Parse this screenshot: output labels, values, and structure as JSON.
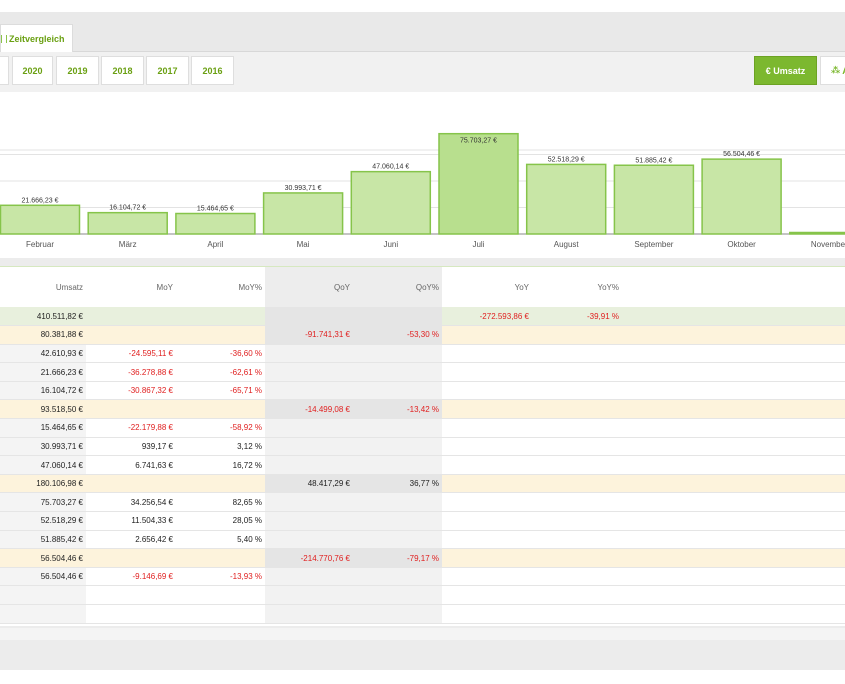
{
  "tabs": {
    "active_label": "Zeitvergleich"
  },
  "years": [
    "2020",
    "2019",
    "2018",
    "2017",
    "2016"
  ],
  "buttons": {
    "umsatz": "€ Umsatz",
    "second": "A"
  },
  "chart_data": {
    "type": "bar",
    "categories": [
      "Februar",
      "März",
      "April",
      "Mai",
      "Juni",
      "Juli",
      "August",
      "September",
      "Oktober",
      "November"
    ],
    "values": [
      21666.23,
      16104.72,
      15464.65,
      30993.71,
      47060.14,
      75703.27,
      52518.29,
      51885.42,
      56504.46,
      0
    ],
    "labels": [
      "21.666,23 €",
      "16.104,72 €",
      "15.464,65 €",
      "30.993,71 €",
      "47.060,14 €",
      "75.703,27 €",
      "52.518,29 €",
      "51.885,42 €",
      "56.504,46 €",
      ""
    ],
    "ylim": [
      0,
      80000
    ],
    "grid": true,
    "highlight_index": 5,
    "colors": {
      "bar": "#c8e6a6",
      "bar_highlight": "#b8df8e",
      "border": "#86c44a"
    }
  },
  "table": {
    "headers": [
      "Umsatz",
      "MoY",
      "MoY%",
      "QoY",
      "QoY%",
      "YoY",
      "YoY%"
    ],
    "rows": [
      {
        "type": "year",
        "cells": [
          "410.511,82 €",
          "",
          "",
          "",
          "",
          "-272.593,86 €",
          "-39,91 %"
        ]
      },
      {
        "type": "quarter",
        "cells": [
          "80.381,88 €",
          "",
          "",
          "-91.741,31 €",
          "-53,30 %",
          "",
          ""
        ]
      },
      {
        "type": "month",
        "cells": [
          "42.610,93 €",
          "-24.595,11 €",
          "-36,60 %",
          "",
          "",
          "",
          ""
        ]
      },
      {
        "type": "month",
        "cells": [
          "21.666,23 €",
          "-36.278,88 €",
          "-62,61 %",
          "",
          "",
          "",
          ""
        ]
      },
      {
        "type": "month",
        "cells": [
          "16.104,72 €",
          "-30.867,32 €",
          "-65,71 %",
          "",
          "",
          "",
          ""
        ]
      },
      {
        "type": "quarter",
        "cells": [
          "93.518,50 €",
          "",
          "",
          "-14.499,08 €",
          "-13,42 %",
          "",
          ""
        ]
      },
      {
        "type": "month",
        "cells": [
          "15.464,65 €",
          "-22.179,88 €",
          "-58,92 %",
          "",
          "",
          "",
          ""
        ]
      },
      {
        "type": "month",
        "cells": [
          "30.993,71 €",
          "939,17 €",
          "3,12 %",
          "",
          "",
          "",
          ""
        ]
      },
      {
        "type": "month",
        "cells": [
          "47.060,14 €",
          "6.741,63 €",
          "16,72 %",
          "",
          "",
          "",
          ""
        ]
      },
      {
        "type": "quarter",
        "cells": [
          "180.106,98 €",
          "",
          "",
          "48.417,29 €",
          "36,77 %",
          "",
          ""
        ]
      },
      {
        "type": "month",
        "cells": [
          "75.703,27 €",
          "34.256,54 €",
          "82,65 %",
          "",
          "",
          "",
          ""
        ]
      },
      {
        "type": "month",
        "cells": [
          "52.518,29 €",
          "11.504,33 €",
          "28,05 %",
          "",
          "",
          "",
          ""
        ]
      },
      {
        "type": "month",
        "cells": [
          "51.885,42 €",
          "2.656,42 €",
          "5,40 %",
          "",
          "",
          "",
          ""
        ]
      },
      {
        "type": "quarter",
        "cells": [
          "56.504,46 €",
          "",
          "",
          "-214.770,76 €",
          "-79,17 %",
          "",
          ""
        ]
      },
      {
        "type": "month",
        "cells": [
          "56.504,46 €",
          "-9.146,69 €",
          "-13,93 %",
          "",
          "",
          "",
          ""
        ]
      },
      {
        "type": "empty",
        "cells": [
          "",
          "",
          "",
          "",
          "",
          "",
          ""
        ]
      },
      {
        "type": "empty",
        "cells": [
          "",
          "",
          "",
          "",
          "",
          "",
          ""
        ]
      }
    ]
  }
}
